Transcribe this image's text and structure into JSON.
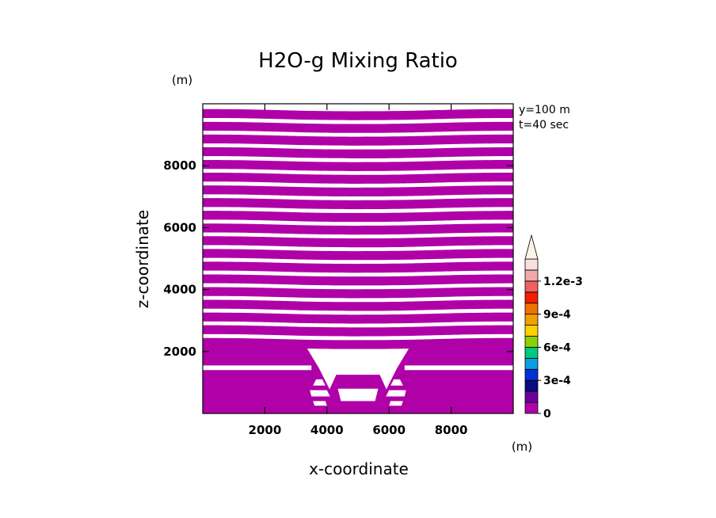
{
  "chart_data": {
    "type": "heatmap",
    "title": "H2O-g Mixing Ratio",
    "xlabel": "x-coordinate",
    "ylabel": "z-coordinate",
    "x_unit": "(m)",
    "y_unit": "(m)",
    "annotations": [
      "y=100 m",
      "t=40 sec"
    ],
    "xlim": [
      0,
      10000
    ],
    "ylim": [
      0,
      10000
    ],
    "x_ticks": [
      2000,
      4000,
      6000,
      8000
    ],
    "y_ticks": [
      2000,
      4000,
      6000,
      8000
    ],
    "x_tick_labels": [
      "2000",
      "4000",
      "6000",
      "8000"
    ],
    "y_tick_labels": [
      "2000",
      "4000",
      "6000",
      "8000"
    ],
    "field_color": "#b000a8",
    "gap_color": "#ffffff",
    "upper_layer": {
      "z_bottom": 2150,
      "z_top": 9950,
      "band_count": 19,
      "gap_fraction": 0.3,
      "band_sag_m": 70
    },
    "lower_layer": {
      "left_block": {
        "x": [
          0,
          3300
        ],
        "z": [
          1400,
          2200
        ]
      },
      "right_block": {
        "x": [
          6700,
          10000
        ],
        "z": [
          1400,
          2200
        ]
      },
      "ground_layer": {
        "z": [
          0,
          1400
        ]
      },
      "valley_floor": {
        "x": [
          4250,
          5750
        ],
        "z": [
          0,
          1250
        ]
      }
    },
    "colorbar": {
      "levels": [
        0,
        0.0001,
        0.0002,
        0.0003,
        0.0004,
        0.0005,
        0.0006,
        0.0007,
        0.0008,
        0.0009,
        0.001,
        0.0011,
        0.0012,
        0.0013
      ],
      "colors": [
        "#b000a8",
        "#6a009e",
        "#0a0a80",
        "#0030d8",
        "#0a9fe0",
        "#00c880",
        "#8cd200",
        "#ffd000",
        "#f0a000",
        "#f07000",
        "#f02000",
        "#f06060",
        "#f0a8a8",
        "#f8e0e0"
      ],
      "tick_values": [
        0,
        0.0003,
        0.0006,
        0.0009,
        0.0012
      ],
      "tick_labels": [
        "0",
        "3e-4",
        "6e-4",
        "9e-4",
        "1.2e-3"
      ],
      "extend": "max",
      "extend_color": "#fff2e8"
    }
  }
}
